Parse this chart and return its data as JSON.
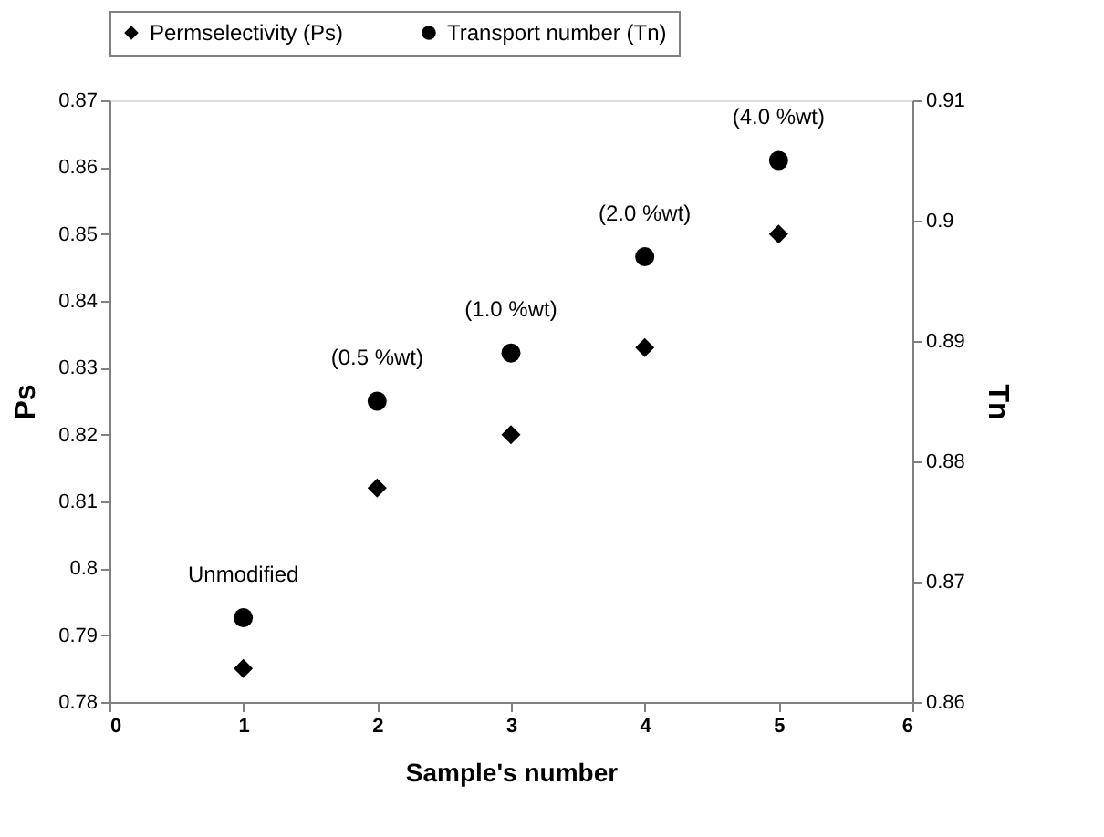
{
  "chart_data": {
    "type": "scatter",
    "xlabel": "Sample's number",
    "ylabel": "Ps",
    "y2label": "Tn",
    "x": [
      1,
      2,
      3,
      4,
      5
    ],
    "series": [
      {
        "name": "Permselectivity (Ps)",
        "color": "#000000",
        "marker": "diamond",
        "values": [
          0.785,
          0.812,
          0.82,
          0.833,
          0.85
        ]
      },
      {
        "name": "Transport number (Tn)",
        "color": "#000000",
        "marker": "circle",
        "axis": "y2",
        "values": [
          0.867,
          0.885,
          0.889,
          0.897,
          0.905
        ]
      }
    ],
    "xlim": [
      0,
      6
    ],
    "xticks": [
      0,
      1,
      2,
      3,
      4,
      5,
      6
    ],
    "ylim": [
      0.78,
      0.87
    ],
    "yticks": [
      0.78,
      0.79,
      0.8,
      0.81,
      0.82,
      0.83,
      0.84,
      0.85,
      0.86,
      0.87
    ],
    "y2lim": [
      0.86,
      0.91
    ],
    "y2ticks": [
      0.86,
      0.87,
      0.88,
      0.89,
      0.9,
      0.91
    ],
    "annotations": [
      "Unmodified",
      "(0.5 %wt)",
      "(1.0 %wt)",
      "(2.0 %wt)",
      "(4.0 %wt)"
    ],
    "grid": false,
    "legend": "top"
  }
}
